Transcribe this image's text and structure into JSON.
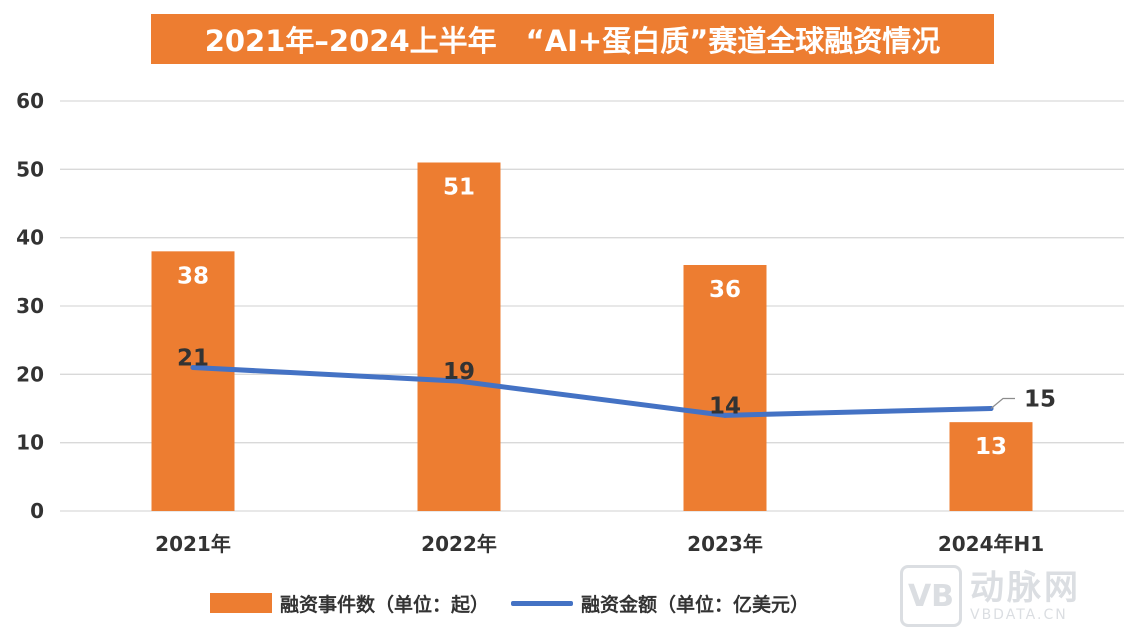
{
  "colors": {
    "bar": "#ED7D31",
    "line": "#4472C4",
    "grid": "#D9D9D9",
    "title_bg": "#ED7D31",
    "text": "#333333"
  },
  "watermark": {
    "logo": "VB",
    "cn": "动脉网",
    "en": "VBDATA.CN"
  },
  "chart_data": {
    "type": "bar",
    "title": "2021年–2024上半年　“AI+蛋白质”赛道全球融资情况",
    "categories": [
      "2021年",
      "2022年",
      "2023年",
      "2024年H1"
    ],
    "series": [
      {
        "name": "融资事件数（单位：起）",
        "type": "bar",
        "values": [
          38,
          51,
          36,
          13
        ]
      },
      {
        "name": "融资金额（单位：亿美元）",
        "type": "line",
        "values": [
          21,
          19,
          14,
          15
        ]
      }
    ],
    "ylim": [
      0,
      60
    ],
    "yticks": [
      0,
      10,
      20,
      30,
      40,
      50,
      60
    ],
    "grid": true,
    "legend_position": "bottom",
    "xlabel": "",
    "ylabel": ""
  }
}
